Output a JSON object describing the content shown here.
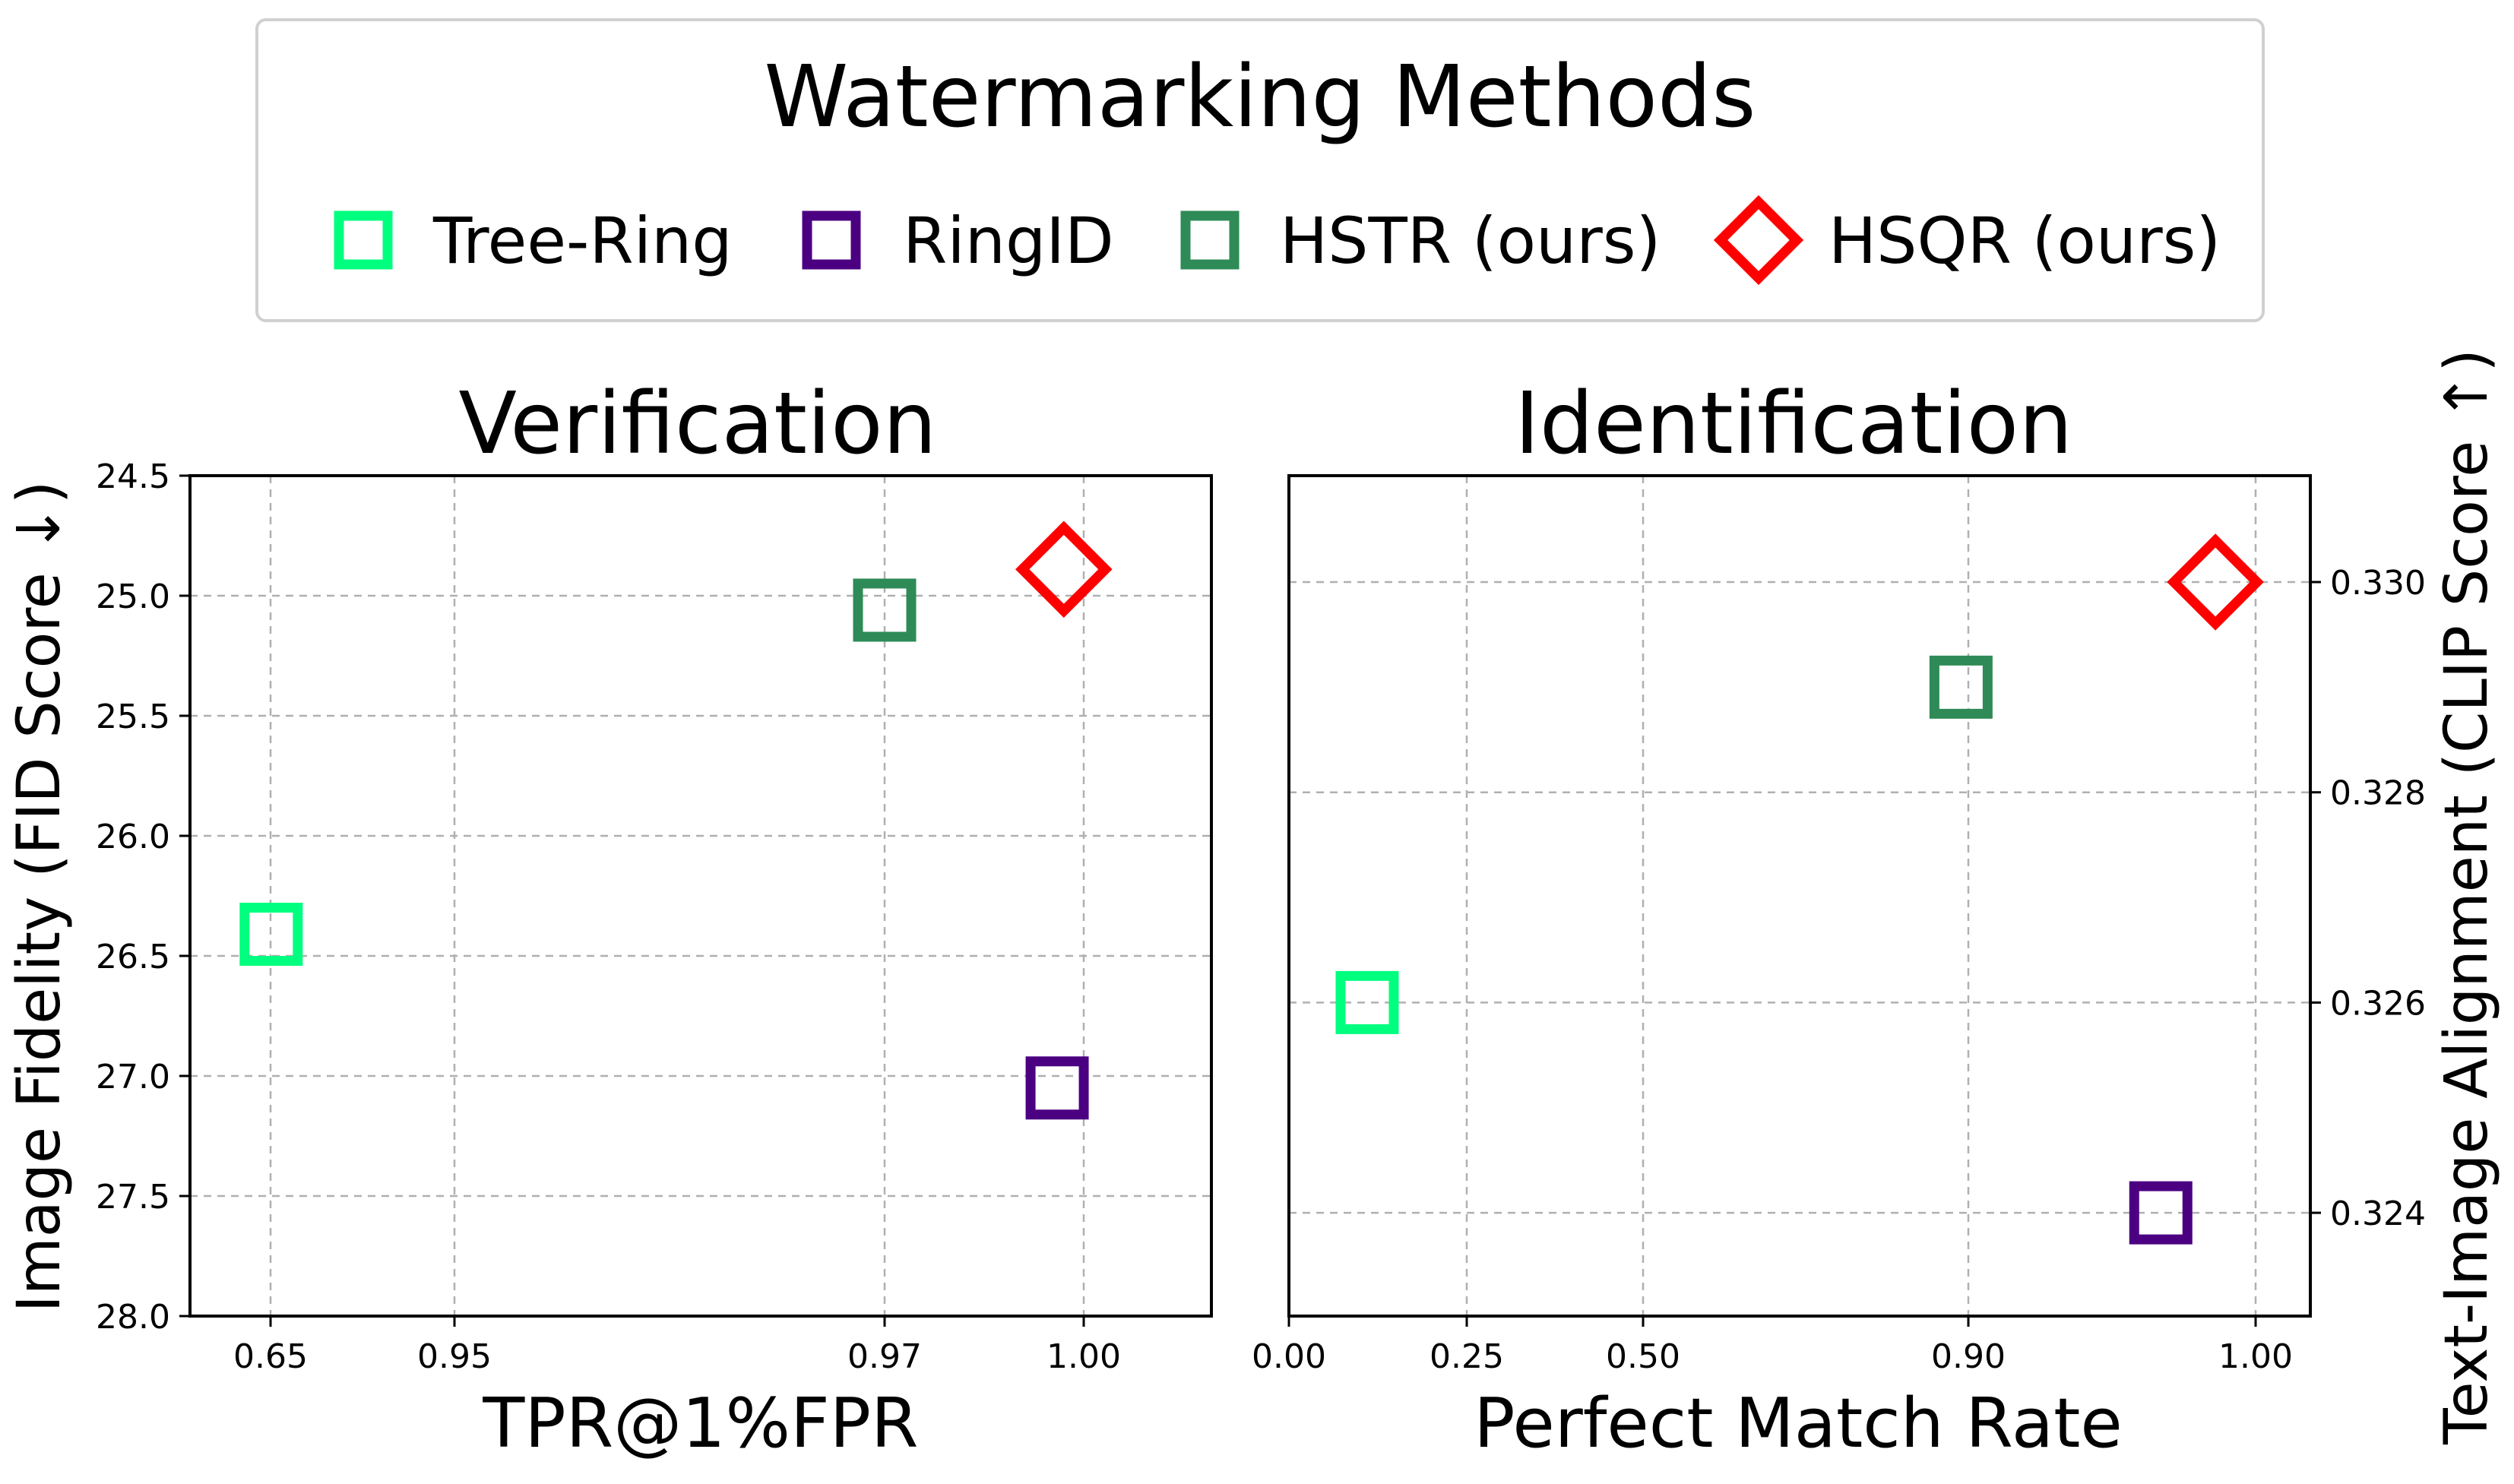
{
  "legend": {
    "title": "Watermarking Methods",
    "items": [
      {
        "label": "Tree-Ring",
        "marker": "square",
        "color": "#00ff7f"
      },
      {
        "label": "RingID",
        "marker": "square",
        "color": "#4b0082"
      },
      {
        "label": "HSTR (ours)",
        "marker": "square",
        "color": "#2e8b57"
      },
      {
        "label": "HSQR (ours)",
        "marker": "diamond",
        "color": "#ff0000"
      }
    ]
  },
  "chart_data": [
    {
      "type": "scatter",
      "title": "Verification",
      "xlabel": "TPR@1%FPR",
      "ylabel": "Image Fidelity (FID Score ↓)",
      "x_scale": "categorical-broken",
      "x_ticks": [
        "0.65",
        "0.95",
        "0.97",
        "1.00"
      ],
      "y_ticks": [
        "24.5",
        "25.0",
        "25.5",
        "26.0",
        "26.5",
        "27.0",
        "27.5",
        "28.0"
      ],
      "ylim": [
        28.0,
        24.5
      ],
      "y_inverted": true,
      "grid": true,
      "series": [
        {
          "name": "Tree-Ring",
          "x": 0.651,
          "y": 26.41
        },
        {
          "name": "RingID",
          "x": 0.996,
          "y": 27.05
        },
        {
          "name": "HSTR (ours)",
          "x": 0.97,
          "y": 25.06
        },
        {
          "name": "HSQR (ours)",
          "x": 0.997,
          "y": 24.89
        }
      ]
    },
    {
      "type": "scatter",
      "title": "Identification",
      "xlabel": "Perfect Match Rate",
      "ylabel": "Text-Image Alignment (CLIP Score ↑)",
      "y_axis_side": "right",
      "x_scale": "categorical-broken",
      "x_ticks": [
        "0.00",
        "0.25",
        "0.50",
        "0.90",
        "1.00"
      ],
      "y_ticks": [
        "0.324",
        "0.326",
        "0.328",
        "0.330"
      ],
      "ylim": [
        0.323,
        0.331
      ],
      "grid": true,
      "series": [
        {
          "name": "Tree-Ring",
          "x": 0.11,
          "y": 0.326
        },
        {
          "name": "RingID",
          "x": 0.967,
          "y": 0.324
        },
        {
          "name": "HSTR (ours)",
          "x": 0.891,
          "y": 0.329
        },
        {
          "name": "HSQR (ours)",
          "x": 0.986,
          "y": 0.33
        }
      ]
    }
  ]
}
